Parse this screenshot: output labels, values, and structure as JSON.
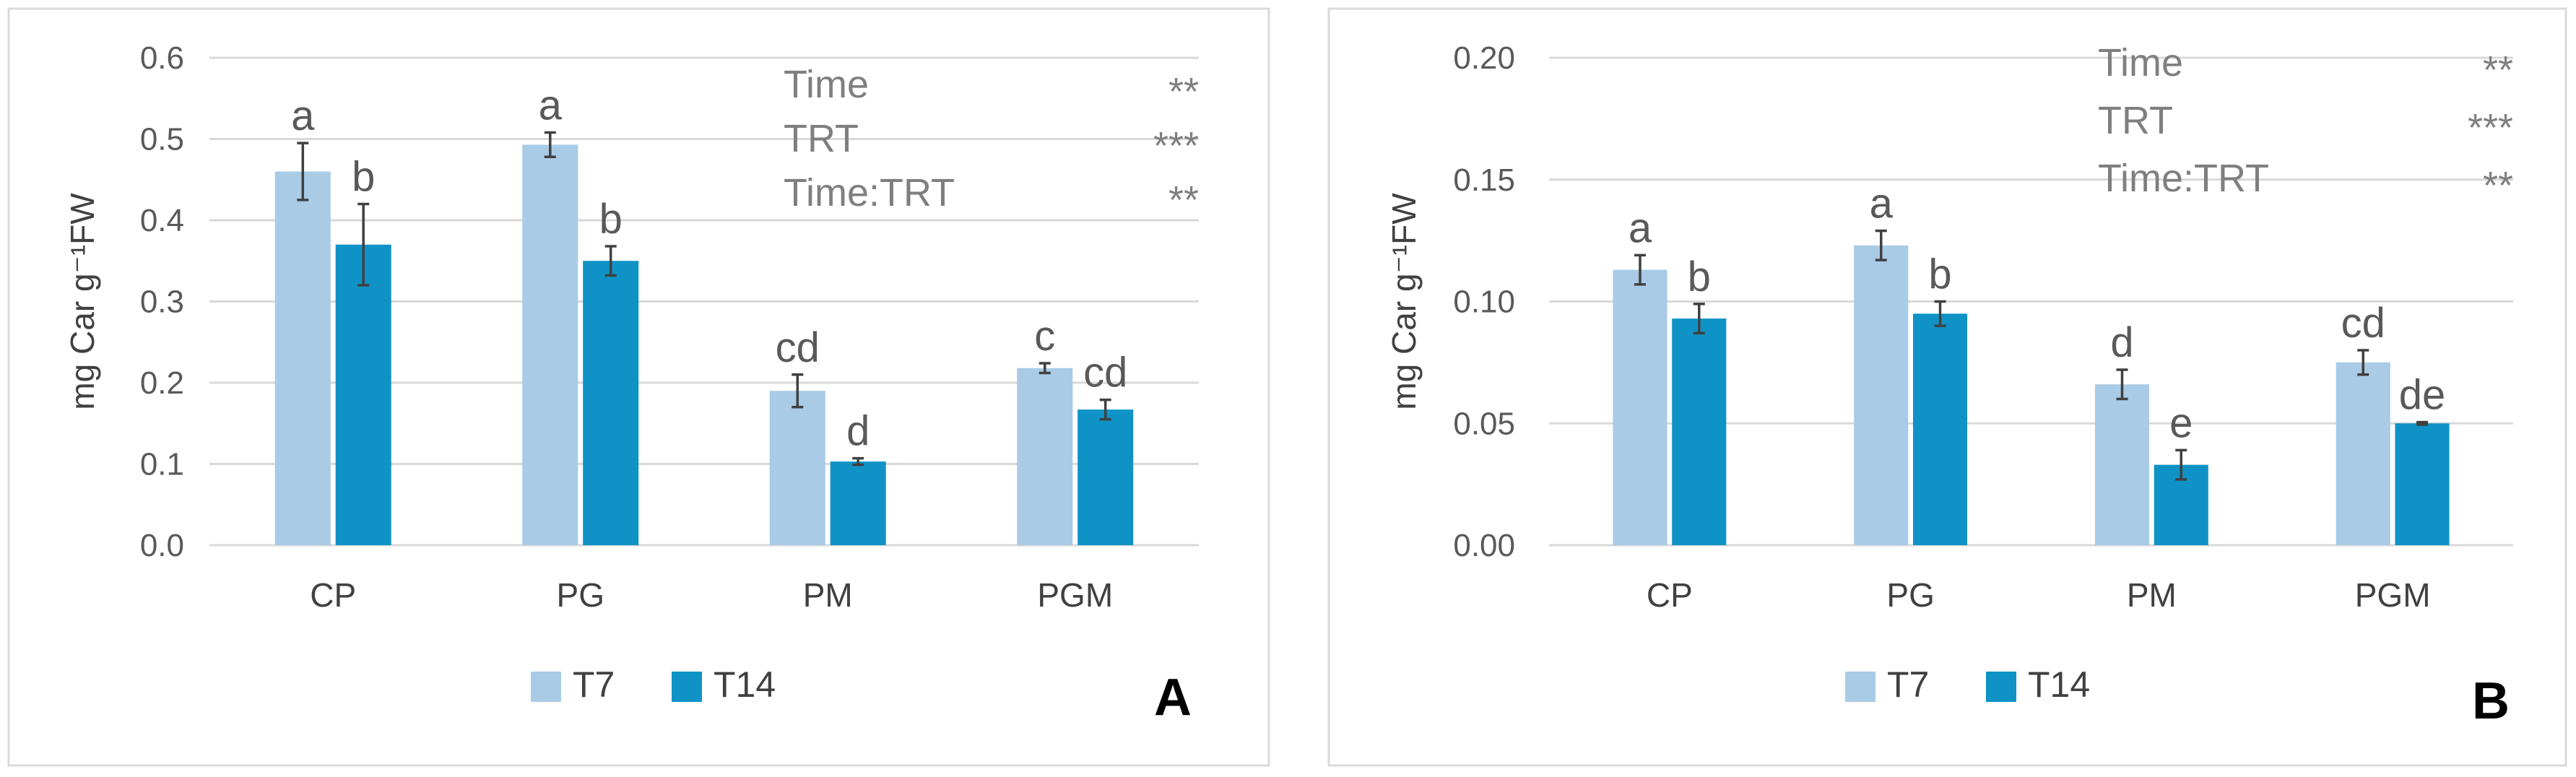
{
  "colors": {
    "T7": "#a9cbe6",
    "T14": "#0f93c6"
  },
  "chart_data": [
    {
      "type": "bar",
      "panel_label": "A",
      "ylabel": "mg Car g⁻¹FW",
      "ylim": [
        0,
        0.6
      ],
      "yticks": [
        "0.0",
        "0.1",
        "0.2",
        "0.3",
        "0.4",
        "0.5",
        "0.6"
      ],
      "categories": [
        "CP",
        "PG",
        "PM",
        "PGM"
      ],
      "series": [
        {
          "name": "T7",
          "values": [
            0.46,
            0.493,
            0.19,
            0.218
          ],
          "errors": [
            0.035,
            0.015,
            0.02,
            0.006
          ],
          "letters": [
            "a",
            "a",
            "cd",
            "c"
          ]
        },
        {
          "name": "T14",
          "values": [
            0.37,
            0.35,
            0.103,
            0.167
          ],
          "errors": [
            0.05,
            0.018,
            0.004,
            0.012
          ],
          "letters": [
            "b",
            "b",
            "d",
            "cd"
          ]
        }
      ],
      "stats": [
        {
          "term": "Time",
          "sig": "**"
        },
        {
          "term": "TRT",
          "sig": "***"
        },
        {
          "term": "Time:TRT",
          "sig": "**"
        }
      ],
      "legend": [
        "T7",
        "T14"
      ]
    },
    {
      "type": "bar",
      "panel_label": "B",
      "ylabel": "mg Car g⁻¹FW",
      "ylim": [
        0,
        0.2
      ],
      "yticks": [
        "0.00",
        "0.05",
        "0.10",
        "0.15",
        "0.20"
      ],
      "categories": [
        "CP",
        "PG",
        "PM",
        "PGM"
      ],
      "series": [
        {
          "name": "T7",
          "values": [
            0.113,
            0.123,
            0.066,
            0.075
          ],
          "errors": [
            0.006,
            0.006,
            0.006,
            0.005
          ],
          "letters": [
            "a",
            "a",
            "d",
            "cd"
          ]
        },
        {
          "name": "T14",
          "values": [
            0.093,
            0.095,
            0.033,
            0.05
          ],
          "errors": [
            0.006,
            0.005,
            0.006,
            0.0005
          ],
          "letters": [
            "b",
            "b",
            "e",
            "de"
          ]
        }
      ],
      "stats": [
        {
          "term": "Time",
          "sig": "**"
        },
        {
          "term": "TRT",
          "sig": "***"
        },
        {
          "term": "Time:TRT",
          "sig": "**"
        }
      ],
      "legend": [
        "T7",
        "T14"
      ]
    }
  ]
}
